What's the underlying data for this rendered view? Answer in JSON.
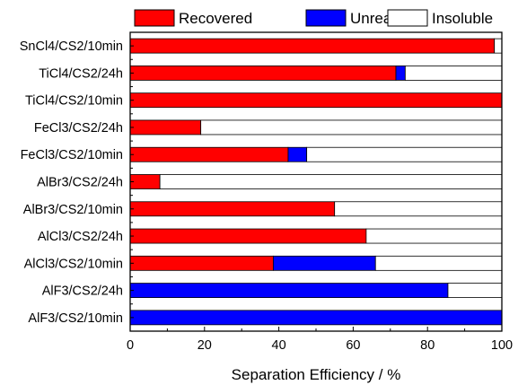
{
  "chart_data": {
    "type": "bar",
    "orientation": "horizontal",
    "stacked": true,
    "categories": [
      "SnCl4/CS2/10min",
      "TiCl4/CS2/24h",
      "TiCl4/CS2/10min",
      "FeCl3/CS2/24h",
      "FeCl3/CS2/10min",
      "AlBr3/CS2/24h",
      "AlBr3/CS2/10min",
      "AlCl3/CS2/24h",
      "AlCl3/CS2/10min",
      "AlF3/CS2/24h",
      "AlF3/CS2/10min"
    ],
    "series": [
      {
        "name": "Recovered",
        "color": "#ff0000",
        "values": [
          98,
          71.5,
          100,
          19,
          42.5,
          8,
          55,
          63.5,
          38.5,
          0,
          0
        ]
      },
      {
        "name": "Unreacted",
        "color": "#0000ff",
        "values": [
          0,
          2.5,
          0,
          0,
          5,
          0,
          0,
          0,
          27.5,
          85.5,
          100
        ]
      },
      {
        "name": "Insoluble",
        "color": "#ffffff",
        "values": [
          2,
          26,
          0,
          81,
          52.5,
          92,
          45,
          36.5,
          34,
          14.5,
          0
        ]
      }
    ],
    "title": "",
    "xlabel": "Separation Efficiency / %",
    "ylabel": "",
    "xlim": [
      0,
      100
    ],
    "xticks": [
      0,
      20,
      40,
      60,
      80,
      100
    ],
    "grid": false,
    "legend": "top"
  }
}
